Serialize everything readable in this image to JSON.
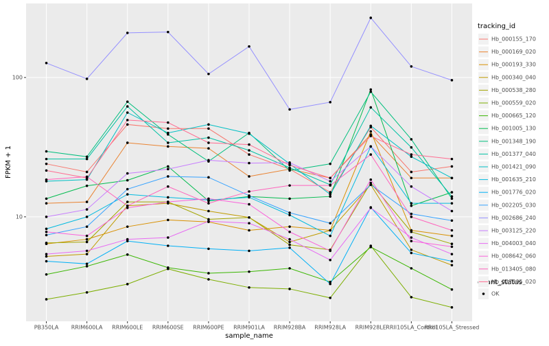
{
  "chart_data": {
    "type": "line",
    "y_label": "FPKM + 1",
    "x_label": "sample_name",
    "categories": [
      "PB350LA",
      "RRIM600LA",
      "RRIM600LE",
      "RRIM600SE",
      "RRIM600PE",
      "RRIM901LA",
      "RRIM928BA",
      "RRIM928LA",
      "RRIM928LE",
      "RRII105LA_Control",
      "RRII105LA_Stressed"
    ],
    "log_y": true,
    "ylim": [
      1.78,
      340
    ],
    "yticks": [
      10,
      100
    ],
    "grid": true,
    "legend_title": "tracking_id",
    "legend2": {
      "title": "quant_status",
      "labels": [
        "OK"
      ]
    },
    "series": [
      {
        "name": "Hb_000155_170",
        "color": "#F8766D",
        "values": [
          24,
          21,
          46,
          43,
          43,
          28,
          22,
          15,
          44,
          21,
          23
        ]
      },
      {
        "name": "Hb_000169_020",
        "color": "#EA8331",
        "values": [
          12.5,
          12.8,
          34,
          32,
          31,
          19.5,
          22,
          19,
          39,
          19,
          19
        ]
      },
      {
        "name": "Hb_000193_330",
        "color": "#D89000",
        "values": [
          6.4,
          6.9,
          8.5,
          9.5,
          9.2,
          8,
          8.5,
          8,
          41,
          8,
          7.3
        ]
      },
      {
        "name": "Hb_000340_040",
        "color": "#C09B00",
        "values": [
          5.2,
          5.4,
          12,
          12.5,
          11,
          9.9,
          6.6,
          8,
          17,
          5.8,
          4.5
        ]
      },
      {
        "name": "Hb_000538_280",
        "color": "#A3A500",
        "values": [
          6.5,
          6.6,
          12.8,
          12.8,
          9.6,
          9.9,
          6.3,
          5.8,
          17.5,
          7.8,
          6.4
        ]
      },
      {
        "name": "Hb_000559_020",
        "color": "#7CAE00",
        "values": [
          2.56,
          2.87,
          3.29,
          4.23,
          3.56,
          3.11,
          3.04,
          2.62,
          6.2,
          2.65,
          2.24
        ]
      },
      {
        "name": "Hb_000665_120",
        "color": "#39B600",
        "values": [
          3.86,
          4.42,
          5.36,
          4.32,
          3.94,
          4.04,
          4.27,
          3.41,
          6.07,
          4.27,
          3.01
        ]
      },
      {
        "name": "Hb_001005_130",
        "color": "#00BB4E",
        "values": [
          13.5,
          16.7,
          18.3,
          23,
          13,
          14,
          13.5,
          14,
          82,
          12,
          15
        ]
      },
      {
        "name": "Hb_001348_190",
        "color": "#00BF7D",
        "values": [
          29.5,
          27,
          67,
          39,
          25,
          40,
          21.5,
          24,
          79,
          36,
          13.5
        ]
      },
      {
        "name": "Hb_001377_040",
        "color": "#00C1A3",
        "values": [
          26,
          26,
          62,
          34,
          37,
          30,
          22.5,
          17,
          61,
          31.5,
          14
        ]
      },
      {
        "name": "Hb_001421_090",
        "color": "#00BFC4",
        "values": [
          18,
          18.5,
          56,
          40,
          46,
          39.5,
          24,
          14.5,
          45,
          27,
          19
        ]
      },
      {
        "name": "Hb_001635_210",
        "color": "#00BAE0",
        "values": [
          8.2,
          10,
          14.5,
          13.8,
          13.2,
          13.8,
          10.3,
          7.3,
          32,
          12.5,
          12.5
        ]
      },
      {
        "name": "Hb_001776_020",
        "color": "#00B0F6",
        "values": [
          4.8,
          4.6,
          6.7,
          6.2,
          5.9,
          5.7,
          6,
          3.3,
          11.7,
          5.5,
          4.8
        ]
      },
      {
        "name": "Hb_002205_030",
        "color": "#35A2FF",
        "values": [
          7.4,
          8.5,
          15.8,
          19.5,
          19.2,
          14.2,
          10.7,
          9,
          17,
          10.5,
          9.4
        ]
      },
      {
        "name": "Hb_002686_240",
        "color": "#9590FF",
        "values": [
          127,
          97.8,
          209,
          212,
          106,
          167,
          59,
          66.5,
          268,
          120,
          95.6
        ]
      },
      {
        "name": "Hb_003125_220",
        "color": "#C77CFF",
        "values": [
          10,
          11.3,
          20.5,
          22,
          25.5,
          24.3,
          24.5,
          18,
          32,
          16.5,
          11
        ]
      },
      {
        "name": "Hb_004003_040",
        "color": "#E76BF3",
        "values": [
          5.4,
          5.7,
          6.9,
          7.1,
          9.3,
          9,
          6.9,
          4.9,
          11.6,
          7.1,
          5.4
        ]
      },
      {
        "name": "Hb_008642_060",
        "color": "#FA62DB",
        "values": [
          7.8,
          7.3,
          11.6,
          12.8,
          13.5,
          12.3,
          7.8,
          5.7,
          18.5,
          6.7,
          6.1
        ]
      },
      {
        "name": "Hb_013405_080",
        "color": "#FF62BC",
        "values": [
          18.5,
          19.4,
          12,
          16.5,
          12.5,
          15.2,
          16.8,
          16.8,
          28,
          10,
          8
        ]
      },
      {
        "name": "Hb_027905_020",
        "color": "#FF6C91",
        "values": [
          21.5,
          19,
          49.5,
          47.5,
          34,
          33,
          23.5,
          19,
          38,
          28,
          26
        ]
      }
    ]
  }
}
